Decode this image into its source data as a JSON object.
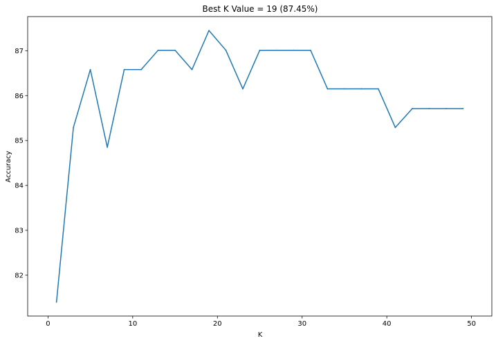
{
  "chart_data": {
    "type": "line",
    "title": "Best K Value = 19 (87.45%)",
    "xlabel": "K",
    "ylabel": "Accuracy",
    "xlim": [
      -2.4,
      52.4
    ],
    "ylim": [
      81.09,
      87.76
    ],
    "xticks": [
      0,
      10,
      20,
      30,
      40,
      50
    ],
    "yticks": [
      82,
      83,
      84,
      85,
      86,
      87
    ],
    "grid": false,
    "series": [
      {
        "color": "#1f77b4",
        "x": [
          1,
          3,
          5,
          7,
          9,
          11,
          13,
          15,
          17,
          19,
          21,
          23,
          25,
          27,
          29,
          31,
          33,
          35,
          37,
          39,
          41,
          43,
          45,
          47,
          49
        ],
        "y": [
          81.4,
          85.29,
          86.58,
          84.85,
          86.58,
          86.58,
          87.01,
          87.01,
          86.58,
          87.45,
          87.01,
          86.15,
          87.01,
          87.01,
          87.01,
          87.01,
          86.15,
          86.15,
          86.15,
          86.15,
          85.29,
          85.71,
          85.71,
          85.71,
          85.71
        ]
      }
    ]
  }
}
